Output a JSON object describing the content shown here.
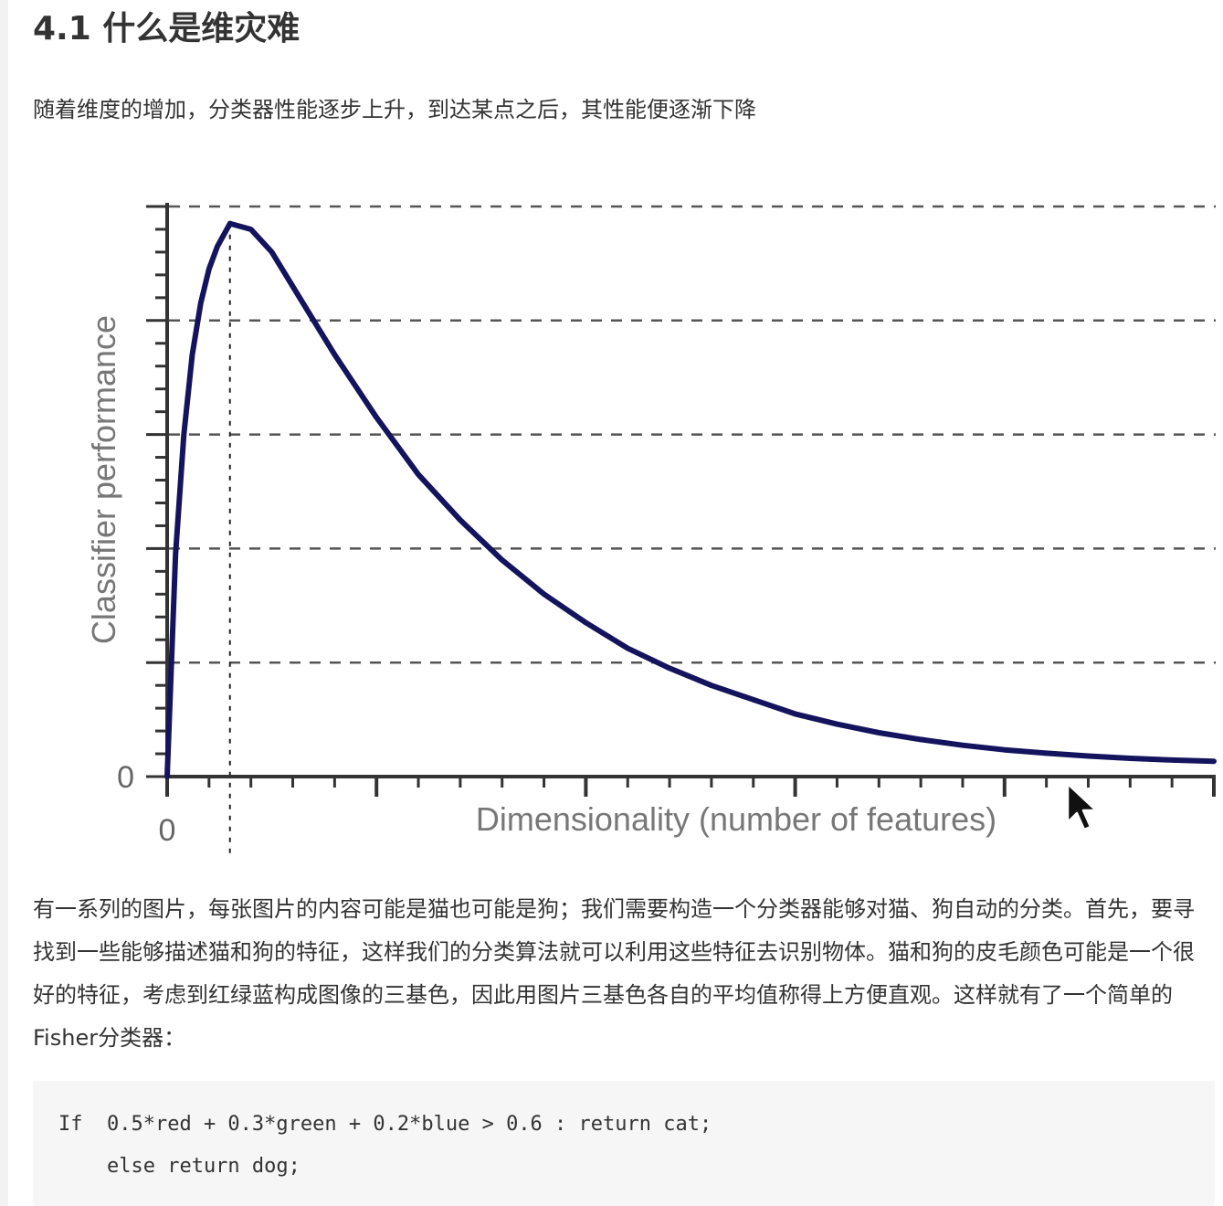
{
  "article": {
    "heading": "4.1 什么是维灾难",
    "intro": "随着维度的增加，分类器性能逐步上升，到达某点之后，其性能便逐渐下降",
    "paragraph": "有一系列的图片，每张图片的内容可能是猫也可能是狗；我们需要构造一个分类器能够对猫、狗自动的分类。首先，要寻找到一些能够描述猫和狗的特征，这样我们的分类算法就可以利用这些特征去识别物体。猫和狗的皮毛颜色可能是一个很好的特征，考虑到红绿蓝构成图像的三基色，因此用图片三基色各自的平均值称得上方便直观。这样就有了一个简单的Fisher分类器：",
    "code": {
      "line1": "If  0.5*red + 0.3*green + 0.2*blue > 0.6 : return cat;",
      "line2": "    else return dog;"
    }
  },
  "chart_data": {
    "type": "line",
    "title": "",
    "xlabel": "Dimensionality (number of features)",
    "ylabel": "Classifier performance",
    "x_tick_labels": [
      "0"
    ],
    "y_tick_labels": [
      "0"
    ],
    "grid": "horizontal dashed",
    "optimum_marker": "vertical dashed line at curve peak",
    "curve_color": "#14145e",
    "series": [
      {
        "x": [
          0,
          0.1,
          0.2,
          0.3,
          0.4,
          0.5,
          0.6,
          0.75,
          1.0,
          1.25,
          1.5,
          1.75,
          2.0,
          2.5,
          3.0,
          3.5,
          4.0,
          4.5,
          5.0,
          5.5,
          6.0,
          6.5,
          7.0,
          7.5,
          8.0,
          8.5,
          9.0,
          9.5,
          10.0,
          10.5,
          11.0,
          11.5,
          12.0,
          12.5
        ],
        "y": [
          0,
          0.39,
          0.6,
          0.74,
          0.83,
          0.89,
          0.93,
          0.97,
          0.96,
          0.92,
          0.86,
          0.8,
          0.74,
          0.63,
          0.53,
          0.45,
          0.38,
          0.32,
          0.27,
          0.225,
          0.19,
          0.16,
          0.135,
          0.11,
          0.092,
          0.077,
          0.065,
          0.055,
          0.047,
          0.041,
          0.036,
          0.032,
          0.029,
          0.027
        ]
      }
    ]
  }
}
